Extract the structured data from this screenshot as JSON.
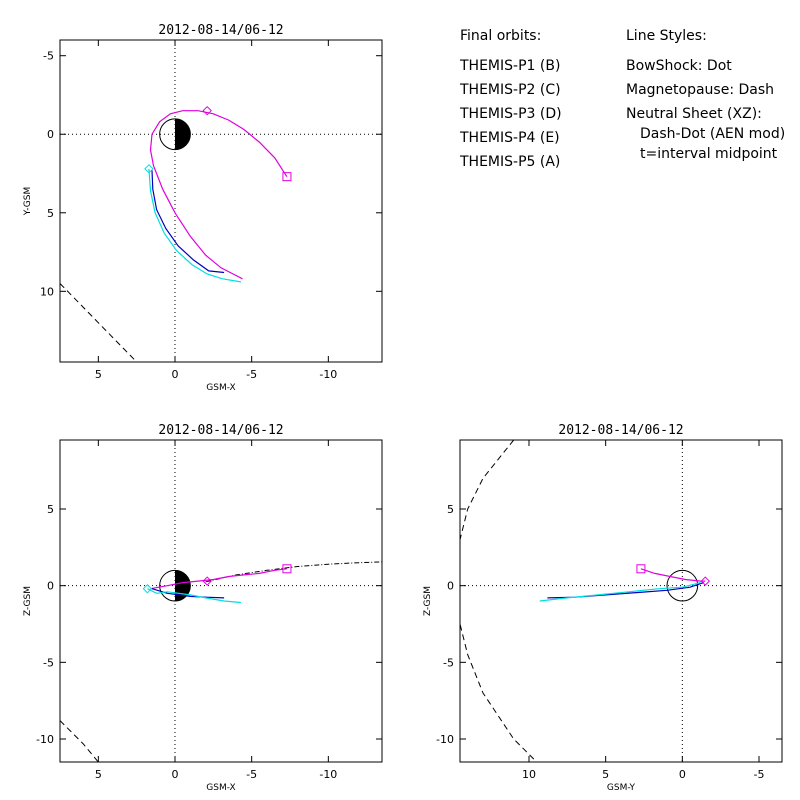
{
  "legend": {
    "orbits_title": "Final orbits:",
    "orbits": [
      {
        "label": "THEMIS-P1 (B)",
        "color": "#ff0000"
      },
      {
        "label": "THEMIS-P2 (C)",
        "color": "#00e000"
      },
      {
        "label": "THEMIS-P3 (D)",
        "color": "#00e0e0"
      },
      {
        "label": "THEMIS-P4 (E)",
        "color": "#0000c0"
      },
      {
        "label": "THEMIS-P5 (A)",
        "color": "#e000e0"
      }
    ],
    "styles_title": "Line Styles:",
    "styles": [
      "BowShock: Dot",
      "Magnetopause: Dash",
      "Neutral Sheet (XZ):",
      "Dash-Dot (AEN mod)",
      "t=interval midpoint"
    ]
  },
  "chart_data": [
    {
      "type": "line",
      "title": "2012-08-14/06-12",
      "xlabel": "GSM-X",
      "ylabel": "Y-GSM",
      "xlim": [
        7.5,
        -13.5
      ],
      "ylim": [
        -6,
        14.5
      ],
      "xticks": [
        5,
        0,
        -5,
        -10
      ],
      "yticks": [
        -5,
        0,
        5,
        10
      ],
      "earth": "half-dark",
      "series": [
        {
          "color": "#e000e0",
          "x": [
            -7.3,
            -6.5,
            -5.5,
            -4.5,
            -3.5,
            -2.5,
            -1.5,
            -0.5,
            0.3,
            1.0,
            1.5,
            1.6,
            1.4,
            0.8,
            0.0,
            -1.0,
            -2.0,
            -3.0,
            -4.0,
            -4.4
          ],
          "y": [
            2.7,
            1.5,
            0.5,
            -0.3,
            -0.9,
            -1.3,
            -1.5,
            -1.5,
            -1.3,
            -0.8,
            0.0,
            1.0,
            2.0,
            3.5,
            5.0,
            6.5,
            7.7,
            8.5,
            9.0,
            9.2
          ]
        },
        {
          "color": "#0000c0",
          "x": [
            1.5,
            1.45,
            1.2,
            0.6,
            -0.2,
            -1.2,
            -2.2,
            -3.2
          ],
          "y": [
            2.3,
            3.5,
            4.8,
            6.0,
            7.1,
            8.0,
            8.7,
            8.8
          ]
        },
        {
          "color": "#00e0e0",
          "x": [
            1.7,
            1.6,
            1.3,
            0.7,
            -0.1,
            -1.1,
            -2.1,
            -3.1,
            -4.3
          ],
          "y": [
            2.2,
            3.6,
            5.0,
            6.3,
            7.4,
            8.3,
            8.9,
            9.2,
            9.4
          ]
        }
      ],
      "bowshock": {
        "x": [
          7.5,
          6.0,
          4.5,
          2.5
        ],
        "y": [
          9.5,
          11.0,
          12.5,
          14.5
        ]
      },
      "markers": [
        {
          "shape": "diamond",
          "color": "#e000e0",
          "x": -2.1,
          "y": -1.5
        },
        {
          "shape": "square",
          "color": "#e000e0",
          "x": -7.3,
          "y": 2.7
        },
        {
          "shape": "diamond",
          "color": "#00e0e0",
          "x": 1.7,
          "y": 2.2
        }
      ]
    },
    {
      "type": "line",
      "title": "2012-08-14/06-12",
      "xlabel": "GSM-X",
      "ylabel": "Z-GSM",
      "xlim": [
        7.5,
        -13.5
      ],
      "ylim": [
        9.5,
        -11.5
      ],
      "xticks": [
        5,
        0,
        -5,
        -10
      ],
      "yticks": [
        5,
        0,
        -5,
        -10
      ],
      "earth": "half-dark",
      "series": [
        {
          "color": "#e000e0",
          "x": [
            1.6,
            0.5,
            -0.5,
            -1.5,
            -2.5,
            -3.5,
            -4.5,
            -5.5,
            -6.5,
            -7.3
          ],
          "y": [
            -0.2,
            0.0,
            0.2,
            0.3,
            0.4,
            0.6,
            0.7,
            0.8,
            1.0,
            1.1
          ]
        },
        {
          "color": "#0000c0",
          "x": [
            1.5,
            0.5,
            -1.0,
            -2.0,
            -3.2
          ],
          "y": [
            -0.2,
            -0.5,
            -0.7,
            -0.75,
            -0.8
          ]
        },
        {
          "color": "#00e0e0",
          "x": [
            1.8,
            1.2,
            0.5,
            -1.0,
            -2.0,
            -3.2,
            -4.3
          ],
          "y": [
            -0.2,
            -0.5,
            -0.4,
            -0.6,
            -0.8,
            -1.0,
            -1.1
          ]
        }
      ],
      "neutral_sheet": {
        "x": [
          -2.0,
          -4.0,
          -6.0,
          -8.0,
          -10.0,
          -12.0,
          -13.5
        ],
        "y": [
          0.25,
          0.7,
          1.0,
          1.25,
          1.4,
          1.5,
          1.55
        ]
      },
      "bowshock": {
        "x": [
          7.5,
          6.0,
          5.0
        ],
        "y": [
          -8.8,
          -10.3,
          -11.5
        ]
      },
      "markers": [
        {
          "shape": "diamond",
          "color": "#e000e0",
          "x": -2.1,
          "y": 0.3
        },
        {
          "shape": "square",
          "color": "#e000e0",
          "x": -7.3,
          "y": 1.1
        },
        {
          "shape": "diamond",
          "color": "#00e0e0",
          "x": 1.8,
          "y": -0.2
        }
      ]
    },
    {
      "type": "line",
      "title": "2012-08-14/06-12",
      "xlabel": "GSM-Y",
      "ylabel": "Z-GSM",
      "xlim": [
        14.5,
        -6.5
      ],
      "ylim": [
        9.5,
        -11.5
      ],
      "xticks": [
        10,
        5,
        0,
        -5
      ],
      "yticks": [
        5,
        0,
        -5,
        -10
      ],
      "earth": "open",
      "series": [
        {
          "color": "#e000e0",
          "x": [
            2.7,
            1.8,
            0.8,
            -0.2,
            -1.2,
            -1.5
          ],
          "y": [
            1.1,
            0.8,
            0.6,
            0.4,
            0.3,
            0.3
          ]
        },
        {
          "color": "#0000c0",
          "x": [
            8.8,
            7.0,
            5.0,
            3.0,
            1.0,
            -0.5,
            -1.4
          ],
          "y": [
            -0.8,
            -0.75,
            -0.6,
            -0.45,
            -0.3,
            -0.1,
            0.2
          ]
        },
        {
          "color": "#00e0e0",
          "x": [
            9.3,
            7.5,
            5.5,
            3.5,
            1.5,
            0.0,
            -1.2
          ],
          "y": [
            -1.0,
            -0.8,
            -0.6,
            -0.4,
            -0.2,
            -0.1,
            0.2
          ]
        }
      ],
      "bowshock": {
        "x": [
          11.0,
          13.0,
          14.0,
          14.5,
          14.5,
          14.0,
          13.0,
          11.0,
          9.5
        ],
        "y": [
          9.5,
          7.0,
          5.0,
          3.0,
          -2.5,
          -4.5,
          -7.0,
          -10.0,
          -11.5
        ]
      },
      "markers": [
        {
          "shape": "diamond",
          "color": "#e000e0",
          "x": -1.5,
          "y": 0.3
        },
        {
          "shape": "square",
          "color": "#e000e0",
          "x": 2.7,
          "y": 1.1
        }
      ]
    }
  ]
}
